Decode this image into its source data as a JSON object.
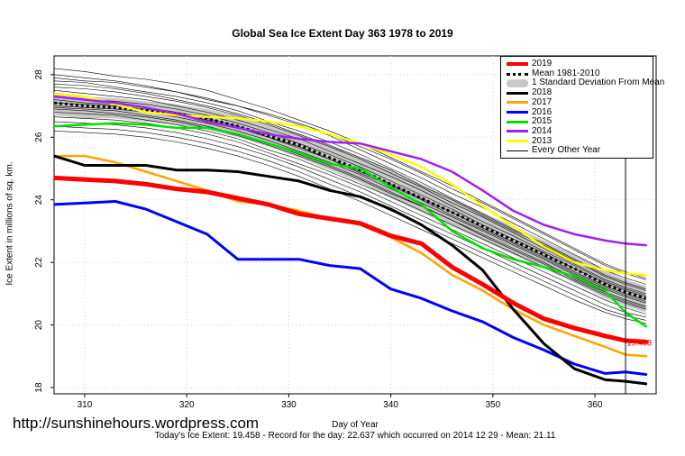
{
  "page": {
    "watermark": "http://sunshinehours.wordpress.com",
    "footer": "Today's Ice Extent: 19.458 - Record for the day: 22.637 which occurred on 2014 12 29 - Mean: 21.11"
  },
  "chart_data": {
    "type": "line",
    "title": "Global Sea Ice Extent Day 363 1978 to 2019",
    "xlabel": "Day of Year",
    "ylabel": "Ice Extent in millions of sq. km.",
    "xlim": [
      307,
      366
    ],
    "ylim": [
      17.8,
      28.6
    ],
    "xticks": [
      310,
      320,
      330,
      340,
      350,
      360
    ],
    "yticks": [
      18,
      20,
      22,
      24,
      26,
      28
    ],
    "marker_day": 363,
    "end_label": "19.458",
    "legend_position": "top-right",
    "legend": [
      {
        "label": "2019",
        "color": "#ff0000",
        "style": "thick"
      },
      {
        "label": "Mean 1981-2010",
        "color": "#000000",
        "style": "dotted"
      },
      {
        "label": "1 Standard Deviation From Mean",
        "color": "#c8c8c8",
        "style": "band"
      },
      {
        "label": "2018",
        "color": "#000000",
        "style": "solid"
      },
      {
        "label": "2017",
        "color": "#ffa500",
        "style": "solid"
      },
      {
        "label": "2016",
        "color": "#0000ff",
        "style": "solid"
      },
      {
        "label": "2015",
        "color": "#00e000",
        "style": "solid"
      },
      {
        "label": "2014",
        "color": "#a020f0",
        "style": "solid"
      },
      {
        "label": "2013",
        "color": "#ffff00",
        "style": "solid"
      },
      {
        "label": "Every Other Year",
        "color": "#000000",
        "style": "thin"
      }
    ],
    "x": [
      307,
      310,
      313,
      316,
      319,
      322,
      325,
      328,
      331,
      334,
      337,
      340,
      343,
      346,
      349,
      352,
      355,
      358,
      361,
      363,
      365
    ],
    "mean": {
      "name": "Mean 1981-2010",
      "values": [
        27.1,
        27.0,
        26.95,
        26.85,
        26.75,
        26.6,
        26.35,
        26.05,
        25.75,
        25.35,
        24.95,
        24.5,
        24.05,
        23.6,
        23.15,
        22.7,
        22.25,
        21.8,
        21.3,
        21.05,
        20.85
      ]
    },
    "std_band": {
      "name": "1 Standard Deviation From Mean",
      "upper": [
        27.4,
        27.3,
        27.25,
        27.15,
        27.05,
        26.9,
        26.7,
        26.4,
        26.1,
        25.75,
        25.35,
        24.95,
        24.5,
        24.05,
        23.6,
        23.15,
        22.7,
        22.25,
        21.75,
        21.45,
        21.25
      ],
      "lower": [
        26.7,
        26.6,
        26.6,
        26.5,
        26.4,
        26.25,
        26.0,
        25.7,
        25.35,
        24.95,
        24.55,
        24.05,
        23.6,
        23.15,
        22.7,
        22.25,
        21.8,
        21.35,
        20.85,
        20.6,
        20.4
      ]
    },
    "series": [
      {
        "name": "2019",
        "color": "#ff0000",
        "width": 5,
        "values": [
          24.7,
          24.65,
          24.6,
          24.5,
          24.35,
          24.25,
          24.05,
          23.85,
          23.55,
          23.4,
          23.25,
          22.85,
          22.6,
          21.85,
          21.3,
          20.7,
          20.2,
          19.9,
          19.65,
          19.5,
          19.46
        ]
      },
      {
        "name": "2018",
        "color": "#000000",
        "width": 3,
        "values": [
          25.4,
          25.1,
          25.1,
          25.1,
          24.95,
          24.95,
          24.9,
          24.75,
          24.6,
          24.3,
          24.1,
          23.7,
          23.2,
          22.55,
          21.75,
          20.5,
          19.4,
          18.6,
          18.25,
          18.2,
          18.12
        ]
      },
      {
        "name": "2017",
        "color": "#ffa500",
        "width": 2.5,
        "values": [
          25.4,
          25.4,
          25.2,
          24.9,
          24.6,
          24.3,
          23.95,
          23.85,
          23.65,
          23.4,
          23.2,
          22.8,
          22.3,
          21.6,
          21.1,
          20.5,
          20.0,
          19.65,
          19.3,
          19.05,
          19.0
        ]
      },
      {
        "name": "2016",
        "color": "#0000ff",
        "width": 3,
        "values": [
          23.85,
          23.9,
          23.95,
          23.7,
          23.3,
          22.9,
          22.1,
          22.1,
          22.1,
          21.9,
          21.8,
          21.15,
          20.85,
          20.45,
          20.1,
          19.6,
          19.2,
          18.75,
          18.45,
          18.5,
          18.42
        ]
      },
      {
        "name": "2015",
        "color": "#00e000",
        "width": 2.5,
        "values": [
          26.35,
          26.4,
          26.45,
          26.4,
          26.3,
          26.3,
          26.1,
          25.8,
          25.5,
          25.15,
          25.0,
          24.4,
          23.85,
          23.0,
          22.45,
          22.1,
          21.85,
          21.55,
          21.1,
          20.4,
          19.95
        ]
      },
      {
        "name": "2014",
        "color": "#a020f0",
        "width": 2.5,
        "values": [
          27.3,
          27.2,
          27.1,
          26.95,
          26.75,
          26.5,
          26.3,
          26.1,
          25.95,
          25.85,
          25.8,
          25.55,
          25.3,
          24.9,
          24.3,
          23.65,
          23.2,
          22.9,
          22.7,
          22.6,
          22.55
        ]
      },
      {
        "name": "2013",
        "color": "#ffff00",
        "width": 2.5,
        "values": [
          27.4,
          27.3,
          27.05,
          26.8,
          26.7,
          26.65,
          26.6,
          26.5,
          26.35,
          26.1,
          25.8,
          25.45,
          25.05,
          24.5,
          23.8,
          23.15,
          22.5,
          22.0,
          21.75,
          21.65,
          21.6
        ]
      },
      {
        "name": "Every Other Year",
        "color": "#000000",
        "width": 0.6,
        "values": [
          28.2,
          28.1,
          27.95,
          27.85,
          27.7,
          27.5,
          27.2,
          26.9,
          26.55,
          26.2,
          25.8,
          25.35,
          24.9,
          24.45,
          23.95,
          23.45,
          22.95,
          22.45,
          21.95,
          21.7,
          21.5
        ]
      },
      {
        "values": [
          28.0,
          27.9,
          27.8,
          27.65,
          27.45,
          27.25,
          27.0,
          26.7,
          26.4,
          26.05,
          25.6,
          25.15,
          24.7,
          24.2,
          23.75,
          23.25,
          22.75,
          22.25,
          21.75,
          21.5,
          21.3
        ]
      },
      {
        "values": [
          27.8,
          27.75,
          27.6,
          27.45,
          27.3,
          27.1,
          26.85,
          26.5,
          26.2,
          25.85,
          25.45,
          25.0,
          24.55,
          24.05,
          23.55,
          23.05,
          22.6,
          22.1,
          21.6,
          21.35,
          21.15
        ]
      },
      {
        "values": [
          27.6,
          27.55,
          27.45,
          27.3,
          27.15,
          26.95,
          26.7,
          26.4,
          26.05,
          25.7,
          25.3,
          24.85,
          24.4,
          23.9,
          23.45,
          22.95,
          22.45,
          21.95,
          21.45,
          21.2,
          21.0
        ]
      },
      {
        "values": [
          27.5,
          27.4,
          27.3,
          27.2,
          27.0,
          26.8,
          26.55,
          26.25,
          25.95,
          25.55,
          25.15,
          24.75,
          24.3,
          23.8,
          23.3,
          22.85,
          22.35,
          21.9,
          21.4,
          21.15,
          20.95
        ]
      },
      {
        "values": [
          27.3,
          27.2,
          27.15,
          27.05,
          26.9,
          26.7,
          26.45,
          26.15,
          25.8,
          25.45,
          25.05,
          24.6,
          24.15,
          23.7,
          23.2,
          22.75,
          22.3,
          21.8,
          21.35,
          21.1,
          20.9
        ]
      },
      {
        "values": [
          27.2,
          27.1,
          27.05,
          26.95,
          26.8,
          26.6,
          26.35,
          26.0,
          25.7,
          25.3,
          24.9,
          24.5,
          24.05,
          23.6,
          23.1,
          22.65,
          22.2,
          21.7,
          21.25,
          21.0,
          20.8
        ]
      },
      {
        "values": [
          27.0,
          26.95,
          26.9,
          26.8,
          26.65,
          26.45,
          26.2,
          25.9,
          25.55,
          25.2,
          24.8,
          24.35,
          23.9,
          23.45,
          23.0,
          22.55,
          22.1,
          21.6,
          21.15,
          20.9,
          20.7
        ]
      },
      {
        "values": [
          26.9,
          26.85,
          26.75,
          26.65,
          26.5,
          26.3,
          26.05,
          25.75,
          25.4,
          25.05,
          24.65,
          24.2,
          23.8,
          23.35,
          22.9,
          22.45,
          22.0,
          21.5,
          21.05,
          20.8,
          20.6
        ]
      },
      {
        "values": [
          26.8,
          26.75,
          26.7,
          26.55,
          26.4,
          26.2,
          25.95,
          25.6,
          25.3,
          24.9,
          24.5,
          24.1,
          23.65,
          23.2,
          22.75,
          22.3,
          21.85,
          21.4,
          20.95,
          20.7,
          20.5
        ]
      },
      {
        "values": [
          26.65,
          26.6,
          26.55,
          26.45,
          26.3,
          26.1,
          25.85,
          25.5,
          25.15,
          24.8,
          24.4,
          23.95,
          23.5,
          23.05,
          22.6,
          22.15,
          21.7,
          21.25,
          20.8,
          20.55,
          20.35
        ]
      },
      {
        "values": [
          26.5,
          26.45,
          26.4,
          26.3,
          26.15,
          25.95,
          25.7,
          25.4,
          25.05,
          24.65,
          24.25,
          23.8,
          23.35,
          22.9,
          22.45,
          22.0,
          21.55,
          21.1,
          20.65,
          20.4,
          20.25
        ]
      },
      {
        "values": [
          26.35,
          26.3,
          26.25,
          26.15,
          26.0,
          25.8,
          25.55,
          25.25,
          24.9,
          24.5,
          24.1,
          23.65,
          23.2,
          22.75,
          22.3,
          21.85,
          21.4,
          20.95,
          20.5,
          20.3,
          20.15
        ]
      },
      {
        "values": [
          26.2,
          26.15,
          26.1,
          26.0,
          25.85,
          25.65,
          25.4,
          25.1,
          24.75,
          24.35,
          23.95,
          23.5,
          23.05,
          22.6,
          22.15,
          21.7,
          21.25,
          20.8,
          20.4,
          20.2,
          20.05
        ]
      },
      {
        "values": [
          27.9,
          27.8,
          27.75,
          27.6,
          27.45,
          27.2,
          27.0,
          26.75,
          26.45,
          26.1,
          25.7,
          25.3,
          24.85,
          24.35,
          23.9,
          23.4,
          22.9,
          22.4,
          21.9,
          21.65,
          21.45
        ]
      },
      {
        "values": [
          27.7,
          27.65,
          27.55,
          27.4,
          27.2,
          27.0,
          26.75,
          26.45,
          26.1,
          25.75,
          25.35,
          24.95,
          24.45,
          24.0,
          23.5,
          23.0,
          22.55,
          22.05,
          21.55,
          21.3,
          21.1
        ]
      },
      {
        "values": [
          27.1,
          27.05,
          27.0,
          26.9,
          26.75,
          26.55,
          26.3,
          26.0,
          25.65,
          25.3,
          24.85,
          24.45,
          24.0,
          23.5,
          23.05,
          22.6,
          22.15,
          21.65,
          21.2,
          20.95,
          20.75
        ]
      },
      {
        "values": [
          26.95,
          26.9,
          26.85,
          26.7,
          26.55,
          26.35,
          26.1,
          25.8,
          25.45,
          25.1,
          24.7,
          24.25,
          23.8,
          23.35,
          22.85,
          22.4,
          21.95,
          21.45,
          21.0,
          20.75,
          20.55
        ]
      }
    ]
  }
}
